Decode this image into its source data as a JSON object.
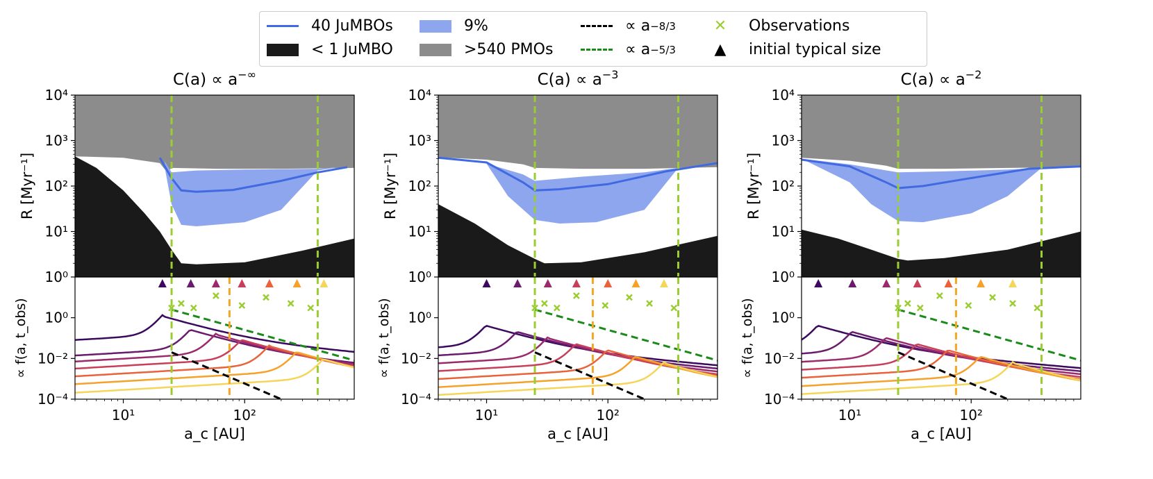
{
  "legend": {
    "items": [
      {
        "label": "40 JuMBOs",
        "kind": "line",
        "color": "#4169e1"
      },
      {
        "label": "9%",
        "kind": "patch",
        "color": "#8ea6ee"
      },
      {
        "label": "∝ a",
        "sup": "−8/3",
        "kind": "dash",
        "color": "#000000"
      },
      {
        "label": "Observations",
        "kind": "cross",
        "color": "#9acd32"
      },
      {
        "label": "< 1 JuMBO",
        "kind": "patch",
        "color": "#1a1a1a"
      },
      {
        "label": ">540 PMOs",
        "kind": "patch",
        "color": "#8c8c8c"
      },
      {
        "label": "∝ a",
        "sup": "−5/3",
        "kind": "dash",
        "color": "#1a8a1a"
      },
      {
        "label": "initial typical size",
        "kind": "triangle",
        "color": "#000000"
      }
    ]
  },
  "chart_data": [
    {
      "type": "area",
      "panel": "top",
      "title": "C(a) ∝ a",
      "title_sup": "−∞",
      "ylabel": "R [Myr⁻¹]",
      "x_scale": "log",
      "xlim": [
        4,
        800
      ],
      "y_scale": "log",
      "ylim": [
        1,
        10000
      ],
      "y_ticks": [
        "10⁰",
        "10¹",
        "10²",
        "10³",
        "10⁴"
      ],
      "vlines_green": [
        25,
        400
      ],
      "grey_lower": {
        "x": [
          4,
          10,
          20,
          23,
          25,
          60,
          200,
          800
        ],
        "y": [
          450,
          420,
          320,
          200,
          250,
          240,
          240,
          250
        ]
      },
      "jumbo_line": {
        "x": [
          20,
          25,
          30,
          40,
          80,
          200,
          400,
          700
        ],
        "y": [
          420,
          150,
          80,
          75,
          82,
          130,
          200,
          260
        ]
      },
      "band_upper": {
        "x": [
          22,
          25,
          40,
          100,
          200,
          400,
          600
        ],
        "y": [
          350,
          200,
          220,
          230,
          235,
          240,
          260
        ]
      },
      "band_lower": {
        "x": [
          22,
          25,
          30,
          40,
          100,
          200,
          400
        ],
        "y": [
          250,
          40,
          14,
          13,
          16,
          30,
          220
        ]
      },
      "black_upper": {
        "x": [
          4,
          6,
          10,
          15,
          20,
          25,
          30,
          40,
          100,
          300,
          800
        ],
        "y": [
          450,
          250,
          80,
          25,
          10,
          4,
          2,
          1.9,
          2.1,
          3.8,
          7
        ]
      }
    },
    {
      "type": "area",
      "panel": "top",
      "title": "C(a) ∝ a",
      "title_sup": "−3",
      "ylabel": "R [Myr⁻¹]",
      "x_scale": "log",
      "xlim": [
        4,
        800
      ],
      "y_scale": "log",
      "ylim": [
        1,
        10000
      ],
      "y_ticks": [
        "10⁰",
        "10¹",
        "10²",
        "10³",
        "10⁴"
      ],
      "vlines_green": [
        25,
        380
      ],
      "grey_lower": {
        "x": [
          4,
          10,
          20,
          25,
          60,
          200,
          800
        ],
        "y": [
          430,
          380,
          300,
          250,
          240,
          240,
          260
        ]
      },
      "jumbo_line": {
        "x": [
          4,
          10,
          20,
          25,
          40,
          100,
          300,
          800
        ],
        "y": [
          420,
          330,
          120,
          80,
          85,
          110,
          210,
          320
        ]
      },
      "band_upper": {
        "x": [
          10,
          20,
          25,
          60,
          200,
          380
        ],
        "y": [
          310,
          180,
          130,
          160,
          200,
          250
        ]
      },
      "band_lower": {
        "x": [
          10,
          15,
          25,
          40,
          80,
          200,
          380
        ],
        "y": [
          310,
          60,
          18,
          15,
          16,
          30,
          250
        ]
      },
      "black_upper": {
        "x": [
          4,
          8,
          15,
          25,
          30,
          60,
          200,
          800
        ],
        "y": [
          40,
          15,
          5,
          2.5,
          2.0,
          2.1,
          3.5,
          8
        ]
      }
    },
    {
      "type": "area",
      "panel": "top",
      "title": "C(a) ∝ a",
      "title_sup": "−2",
      "ylabel": "R [Myr⁻¹]",
      "x_scale": "log",
      "xlim": [
        4,
        800
      ],
      "y_scale": "log",
      "ylim": [
        1,
        10000
      ],
      "y_ticks": [
        "10⁰",
        "10¹",
        "10²",
        "10³",
        "10⁴"
      ],
      "vlines_green": [
        25,
        380
      ],
      "grey_lower": {
        "x": [
          4,
          10,
          20,
          25,
          60,
          200,
          800
        ],
        "y": [
          420,
          360,
          280,
          240,
          240,
          250,
          260
        ]
      },
      "jumbo_line": {
        "x": [
          4,
          10,
          20,
          25,
          40,
          100,
          300,
          800
        ],
        "y": [
          380,
          270,
          120,
          90,
          100,
          150,
          240,
          270
        ]
      },
      "band_upper": {
        "x": [
          4,
          10,
          25,
          60,
          200,
          380
        ],
        "y": [
          400,
          300,
          200,
          210,
          230,
          250
        ]
      },
      "band_lower": {
        "x": [
          4,
          10,
          15,
          25,
          40,
          100,
          200,
          380
        ],
        "y": [
          400,
          120,
          40,
          17,
          16,
          25,
          60,
          250
        ]
      },
      "black_upper": {
        "x": [
          4,
          8,
          15,
          25,
          30,
          60,
          200,
          800
        ],
        "y": [
          11,
          7,
          4,
          2.5,
          2.3,
          2.6,
          4,
          10
        ]
      }
    },
    {
      "type": "line",
      "panel": "bottom",
      "xlabel": "a_c [AU]",
      "ylabel": "∝ f(a, t_obs)",
      "x_scale": "log",
      "xlim": [
        4,
        800
      ],
      "y_scale": "log",
      "ylim": [
        0.0001,
        100
      ],
      "x_ticks": [
        "10¹",
        "10²"
      ],
      "y_ticks": [
        "10⁻⁴",
        "10⁻²",
        "10⁰"
      ],
      "vlines_green": [
        25,
        400
      ],
      "vline_orange": 75,
      "triangles_x": [
        21,
        36,
        58,
        95,
        160,
        270,
        450
      ],
      "observations": {
        "x": [
          25,
          30,
          38,
          58,
          95,
          150,
          240,
          350
        ],
        "y": [
          3,
          5,
          3,
          12,
          4,
          10,
          5,
          3
        ]
      },
      "peaks": [
        21,
        36,
        58,
        95,
        160,
        270,
        450
      ],
      "peak_heights": [
        1.2,
        0.25,
        0.15,
        0.08,
        0.04,
        0.02,
        0.009
      ],
      "green_dashed": {
        "x": [
          25,
          800
        ],
        "y": [
          2.5,
          0.008
        ]
      },
      "black_dashed": {
        "x": [
          25,
          200
        ],
        "y": [
          0.02,
          0.0001
        ]
      }
    },
    {
      "type": "line",
      "panel": "bottom",
      "xlabel": "a_c [AU]",
      "ylabel": "∝ f(a, t_obs)",
      "x_scale": "log",
      "xlim": [
        4,
        800
      ],
      "y_scale": "log",
      "ylim": [
        0.0001,
        100
      ],
      "x_ticks": [
        "10¹",
        "10²"
      ],
      "y_ticks": [
        "10⁻⁴",
        "10⁻²",
        "10⁰"
      ],
      "vlines_green": [
        25,
        380
      ],
      "vline_orange": 75,
      "triangles_x": [
        10,
        18,
        32,
        55,
        100,
        170,
        290
      ],
      "observations": {
        "x": [
          25,
          30,
          38,
          55,
          95,
          150,
          220,
          350
        ],
        "y": [
          3,
          5,
          3,
          12,
          4,
          10,
          5,
          3
        ]
      },
      "peaks": [
        10,
        18,
        32,
        55,
        100,
        170,
        290
      ],
      "peak_heights": [
        0.4,
        0.2,
        0.1,
        0.05,
        0.025,
        0.012,
        0.006
      ],
      "green_dashed": {
        "x": [
          25,
          800
        ],
        "y": [
          2.5,
          0.008
        ]
      },
      "black_dashed": {
        "x": [
          25,
          200
        ],
        "y": [
          0.02,
          0.0001
        ]
      }
    },
    {
      "type": "line",
      "panel": "bottom",
      "xlabel": "a_c [AU]",
      "ylabel": "∝ f(a, t_obs)",
      "x_scale": "log",
      "xlim": [
        4,
        800
      ],
      "y_scale": "log",
      "ylim": [
        0.0001,
        100
      ],
      "x_ticks": [
        "10¹",
        "10²"
      ],
      "y_ticks": [
        "10⁻⁴",
        "10⁻²",
        "10⁰"
      ],
      "vlines_green": [
        25,
        380
      ],
      "vline_orange": 75,
      "triangles_x": [
        5.5,
        10.5,
        20,
        36,
        65,
        120,
        220
      ],
      "observations": {
        "x": [
          25,
          30,
          38,
          55,
          95,
          150,
          220,
          350
        ],
        "y": [
          3,
          5,
          3,
          12,
          4,
          10,
          5,
          3
        ]
      },
      "peaks": [
        5.5,
        10.5,
        20,
        36,
        65,
        120,
        220
      ],
      "peak_heights": [
        0.4,
        0.2,
        0.1,
        0.05,
        0.025,
        0.012,
        0.006
      ],
      "green_dashed": {
        "x": [
          25,
          800
        ],
        "y": [
          2.5,
          0.008
        ]
      },
      "black_dashed": {
        "x": [
          25,
          200
        ],
        "y": [
          0.02,
          0.0001
        ]
      }
    }
  ],
  "series_colors": [
    "#3b0a5e",
    "#6a1b6e",
    "#9a2a6c",
    "#c83f5a",
    "#e8623a",
    "#f5a12a",
    "#f5d55a"
  ],
  "vline_colors": {
    "green": "#9acd32",
    "orange": "#f5a623"
  }
}
